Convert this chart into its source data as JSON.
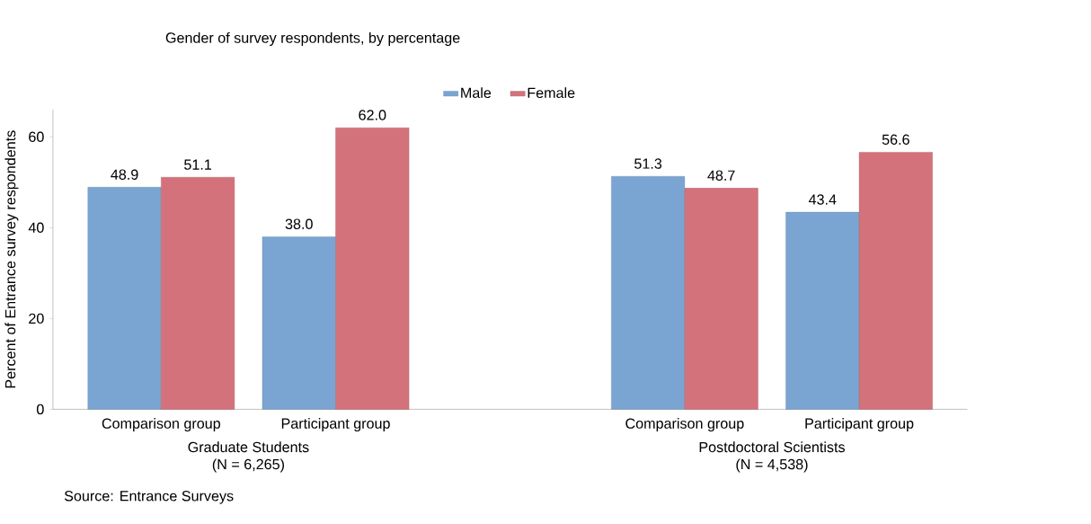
{
  "chart_data": {
    "type": "bar",
    "title": "Gender of survey respondents, by percentage",
    "ylabel": "Percent of Entrance survey respondents",
    "categories": [
      "Comparison group",
      "Participant group",
      null,
      "Comparison group",
      "Participant group"
    ],
    "series": [
      {
        "name": "Male",
        "color": "#7aa5d2",
        "values": [
          48.9,
          38.0,
          null,
          51.3,
          43.4
        ],
        "value_labels": [
          "48.9",
          "38.0",
          null,
          "51.3",
          "43.4"
        ]
      },
      {
        "name": "Female",
        "color": "#d3727b",
        "values": [
          51.1,
          62.0,
          null,
          48.7,
          56.6
        ],
        "value_labels": [
          "51.1",
          "62.0",
          null,
          "48.7",
          "56.6"
        ]
      }
    ],
    "ylim": [
      0,
      66
    ],
    "yticks": [
      0,
      20,
      40,
      60
    ],
    "grid": false,
    "legend": "top",
    "annotations": [
      "Graduate Students",
      "(N = 6,265)",
      "Postdoctoral Scientists",
      "(N = 4,538)",
      "Source: Entrance Surveys"
    ]
  }
}
